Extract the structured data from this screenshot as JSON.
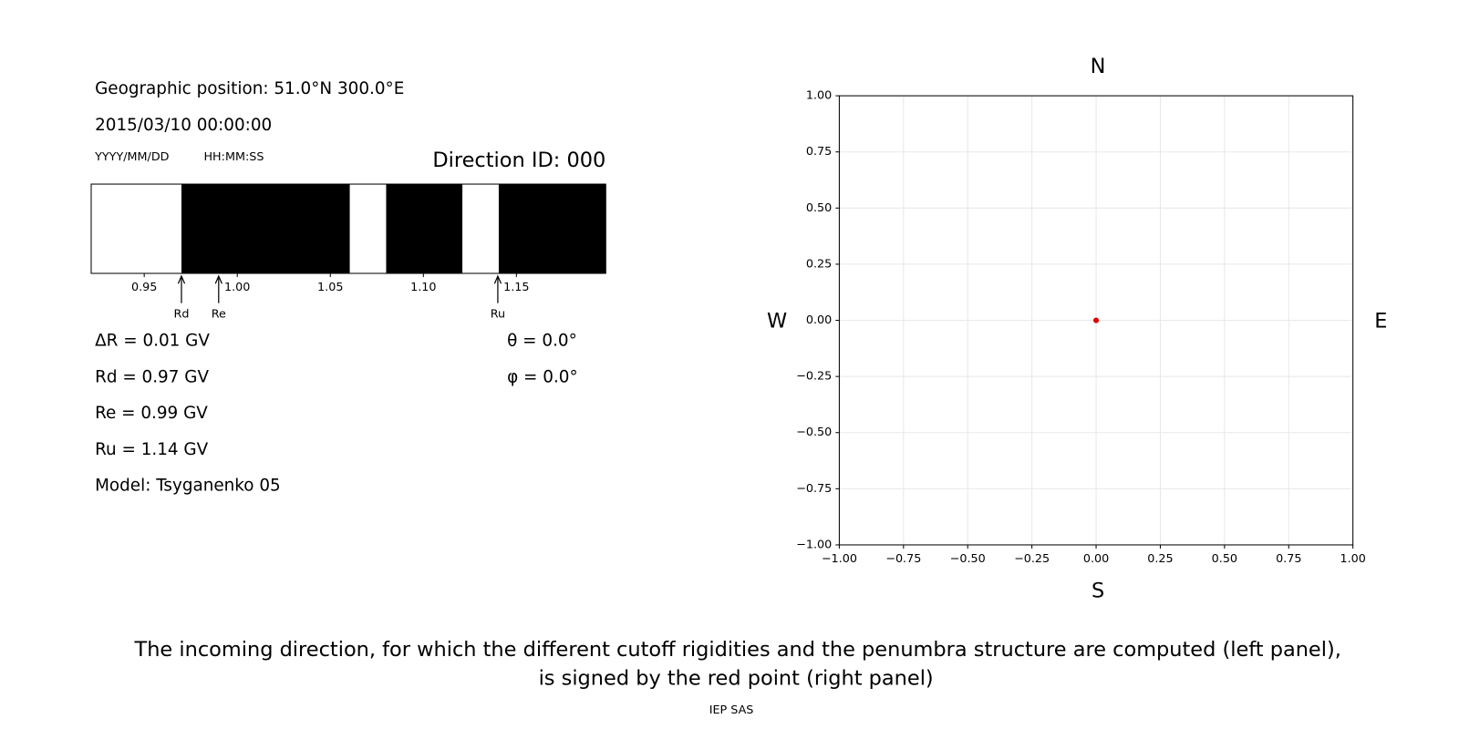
{
  "chart_data": [
    {
      "type": "penumbra",
      "position": "Geographic position: 51.0°N 300.0°E",
      "datetime": "2015/03/10 00:00:00",
      "date_format": "YYYY/MM/DD",
      "time_format": "HH:MM:SS",
      "title": "Direction ID: 000",
      "xlim": [
        0.9215,
        1.198
      ],
      "xticks": [
        0.95,
        {
          "value": 1.0,
          "label": "1.00"
        },
        1.05,
        {
          "value": 1.1,
          "label": "1.10"
        },
        1.15
      ],
      "bands": [
        {
          "start": 0.9215,
          "end": 0.97,
          "color": "#ffffff"
        },
        {
          "start": 0.97,
          "end": 1.0605,
          "color": "#000000"
        },
        {
          "start": 1.0605,
          "end": 1.08,
          "color": "#ffffff"
        },
        {
          "start": 1.08,
          "end": 1.121,
          "color": "#000000"
        },
        {
          "start": 1.121,
          "end": 1.1405,
          "color": "#ffffff"
        },
        {
          "start": 1.1405,
          "end": 1.198,
          "color": "#000000"
        }
      ],
      "markers": [
        {
          "label": "Rd",
          "value": 0.97
        },
        {
          "label": "Re",
          "value": 0.99
        },
        {
          "label": "Ru",
          "value": 1.14
        }
      ],
      "info": [
        "ΔR = 0.01 GV",
        "Rd = 0.97 GV",
        "Re = 0.99 GV",
        "Ru = 1.14 GV",
        "Model: Tsyganenko 05"
      ],
      "angles": [
        "θ = 0.0°",
        "φ = 0.0°"
      ]
    },
    {
      "type": "scatter",
      "north": "N",
      "south": "S",
      "west": "W",
      "east": "E",
      "x": [
        0.0
      ],
      "values": [
        0.0
      ],
      "color": "#e00000",
      "xlim": [
        -1,
        1
      ],
      "ylim": [
        -1,
        1
      ],
      "xticks": [
        {
          "value": -1,
          "label": "−1.00"
        },
        {
          "value": -0.75,
          "label": "−0.75"
        },
        {
          "value": -0.5,
          "label": "−0.50"
        },
        {
          "value": -0.25,
          "label": "−0.25"
        },
        {
          "value": 0,
          "label": "0.00"
        },
        {
          "value": 0.25,
          "label": "0.25"
        },
        {
          "value": 0.5,
          "label": "0.50"
        },
        {
          "value": 0.75,
          "label": "0.75"
        },
        {
          "value": 1,
          "label": "1.00"
        }
      ],
      "yticks": [
        {
          "value": -1,
          "label": "−1.00"
        },
        {
          "value": -0.75,
          "label": "−0.75"
        },
        {
          "value": -0.5,
          "label": "−0.50"
        },
        {
          "value": -0.25,
          "label": "−0.25"
        },
        {
          "value": 0,
          "label": "0.00"
        },
        {
          "value": 0.25,
          "label": "0.25"
        },
        {
          "value": 0.5,
          "label": "0.50"
        },
        {
          "value": 0.75,
          "label": "0.75"
        },
        {
          "value": 1,
          "label": "1.00"
        }
      ],
      "grid": true
    }
  ],
  "caption": [
    "The incoming direction, for which the different cutoff rigidities and the penumbra structure are computed (left panel),",
    "is signed by the red point (right panel)"
  ],
  "credit": "IEP SAS"
}
